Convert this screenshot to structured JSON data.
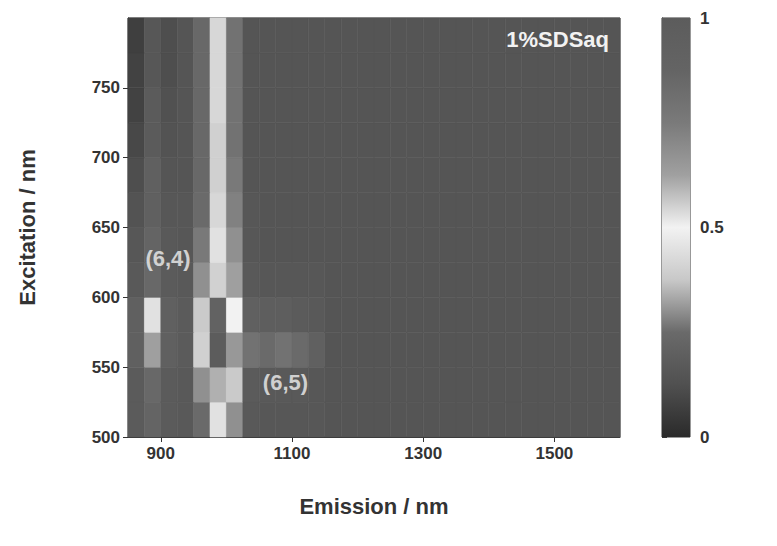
{
  "chart_data": {
    "type": "heatmap",
    "title": "1%SDSaq",
    "xlabel": "Emission / nm",
    "ylabel": "Excitation / nm",
    "x": [
      862.5,
      887.5,
      912.5,
      937.5,
      962.5,
      987.5,
      1012.5,
      1037.5,
      1062.5,
      1087.5,
      1112.5,
      1137.5,
      1162.5,
      1187.5,
      1212.5,
      1237.5,
      1262.5,
      1287.5,
      1312.5,
      1337.5,
      1362.5,
      1387.5,
      1412.5,
      1437.5,
      1462.5,
      1487.5,
      1512.5,
      1537.5,
      1562.5,
      1587.5
    ],
    "y": [
      512.5,
      537.5,
      562.5,
      587.5,
      612.5,
      637.5,
      662.5,
      687.5,
      712.5,
      737.5,
      762.5,
      787.5
    ],
    "values": [
      [
        0.18,
        0.22,
        0.18,
        0.17,
        0.25,
        0.45,
        0.3,
        0.17,
        0.16,
        0.16,
        0.16,
        0.16,
        0.15,
        0.15,
        0.15,
        0.15,
        0.15,
        0.15,
        0.15,
        0.15,
        0.15,
        0.15,
        0.15,
        0.15,
        0.15,
        0.15,
        0.15,
        0.15,
        0.15,
        0.15
      ],
      [
        0.18,
        0.24,
        0.18,
        0.17,
        0.3,
        0.6,
        0.38,
        0.18,
        0.17,
        0.17,
        0.17,
        0.16,
        0.15,
        0.15,
        0.15,
        0.15,
        0.15,
        0.15,
        0.15,
        0.15,
        0.15,
        0.15,
        0.15,
        0.15,
        0.15,
        0.15,
        0.15,
        0.15,
        0.15,
        0.15
      ],
      [
        0.2,
        0.32,
        0.2,
        0.18,
        0.4,
        1.0,
        0.65,
        0.26,
        0.25,
        0.26,
        0.25,
        0.2,
        0.15,
        0.15,
        0.15,
        0.15,
        0.15,
        0.15,
        0.15,
        0.15,
        0.15,
        0.15,
        0.15,
        0.15,
        0.15,
        0.15,
        0.15,
        0.15,
        0.15,
        0.15
      ],
      [
        0.2,
        0.45,
        0.2,
        0.18,
        0.38,
        0.9,
        0.5,
        0.2,
        0.19,
        0.19,
        0.18,
        0.17,
        0.15,
        0.15,
        0.15,
        0.15,
        0.15,
        0.15,
        0.15,
        0.15,
        0.15,
        0.15,
        0.15,
        0.15,
        0.15,
        0.15,
        0.15,
        0.15,
        0.15,
        0.15
      ],
      [
        0.17,
        0.24,
        0.18,
        0.17,
        0.3,
        0.55,
        0.32,
        0.17,
        0.16,
        0.16,
        0.16,
        0.16,
        0.15,
        0.15,
        0.15,
        0.15,
        0.15,
        0.15,
        0.15,
        0.15,
        0.15,
        0.15,
        0.15,
        0.15,
        0.15,
        0.15,
        0.15,
        0.15,
        0.15,
        0.15
      ],
      [
        0.16,
        0.22,
        0.17,
        0.16,
        0.27,
        0.45,
        0.3,
        0.16,
        0.15,
        0.15,
        0.15,
        0.15,
        0.15,
        0.15,
        0.15,
        0.15,
        0.15,
        0.15,
        0.15,
        0.15,
        0.15,
        0.15,
        0.15,
        0.15,
        0.15,
        0.15,
        0.15,
        0.15,
        0.15,
        0.15
      ],
      [
        0.14,
        0.2,
        0.16,
        0.16,
        0.25,
        0.42,
        0.28,
        0.16,
        0.15,
        0.15,
        0.15,
        0.15,
        0.15,
        0.15,
        0.15,
        0.15,
        0.15,
        0.15,
        0.15,
        0.15,
        0.15,
        0.15,
        0.15,
        0.15,
        0.15,
        0.15,
        0.15,
        0.15,
        0.15,
        0.15
      ],
      [
        0.12,
        0.2,
        0.15,
        0.15,
        0.24,
        0.4,
        0.27,
        0.15,
        0.15,
        0.15,
        0.15,
        0.15,
        0.15,
        0.15,
        0.15,
        0.15,
        0.15,
        0.15,
        0.15,
        0.15,
        0.15,
        0.15,
        0.15,
        0.15,
        0.15,
        0.15,
        0.15,
        0.15,
        0.15,
        0.15
      ],
      [
        0.1,
        0.18,
        0.14,
        0.15,
        0.24,
        0.4,
        0.26,
        0.15,
        0.15,
        0.15,
        0.15,
        0.15,
        0.15,
        0.15,
        0.15,
        0.15,
        0.15,
        0.15,
        0.15,
        0.15,
        0.15,
        0.15,
        0.15,
        0.15,
        0.15,
        0.15,
        0.15,
        0.15,
        0.15,
        0.15
      ],
      [
        0.08,
        0.18,
        0.13,
        0.15,
        0.24,
        0.42,
        0.26,
        0.15,
        0.15,
        0.15,
        0.15,
        0.15,
        0.15,
        0.15,
        0.15,
        0.15,
        0.15,
        0.15,
        0.15,
        0.15,
        0.15,
        0.15,
        0.15,
        0.15,
        0.15,
        0.15,
        0.15,
        0.15,
        0.15,
        0.15
      ],
      [
        0.08,
        0.16,
        0.12,
        0.15,
        0.24,
        0.42,
        0.26,
        0.15,
        0.15,
        0.15,
        0.15,
        0.15,
        0.15,
        0.15,
        0.15,
        0.15,
        0.15,
        0.15,
        0.15,
        0.15,
        0.15,
        0.15,
        0.15,
        0.15,
        0.15,
        0.15,
        0.15,
        0.15,
        0.15,
        0.15
      ],
      [
        0.07,
        0.16,
        0.12,
        0.15,
        0.24,
        0.42,
        0.26,
        0.15,
        0.15,
        0.15,
        0.15,
        0.15,
        0.15,
        0.15,
        0.15,
        0.15,
        0.15,
        0.15,
        0.15,
        0.15,
        0.15,
        0.15,
        0.15,
        0.15,
        0.15,
        0.15,
        0.15,
        0.15,
        0.15,
        0.15
      ]
    ],
    "xlim": [
      850,
      1600
    ],
    "xticks": [
      900,
      1100,
      1300,
      1500
    ],
    "ylim": [
      500,
      800
    ],
    "yticks": [
      500,
      550,
      600,
      650,
      700,
      750
    ],
    "colorbar_range": [
      0,
      1
    ],
    "colorbar_ticks": [
      0,
      0.5,
      1
    ],
    "annotations": [
      {
        "text": "(6,4)",
        "x": 911,
        "y": 628
      },
      {
        "text": "(6,5)",
        "x": 1090,
        "y": 539
      }
    ]
  }
}
